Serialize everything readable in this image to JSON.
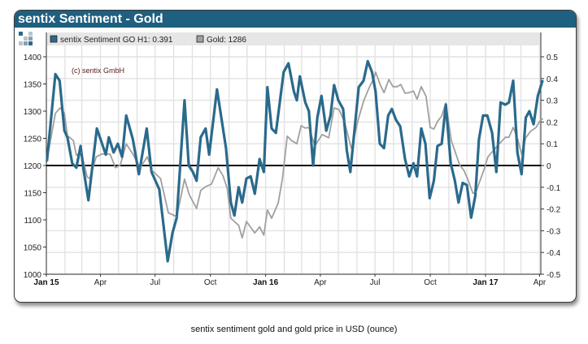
{
  "title": "sentix Sentiment - Gold",
  "caption": "sentix sentiment gold and gold price in USD (ounce)",
  "copyright": "(c) sentix GmbH",
  "logo_icon": "sentix-squares-logo",
  "colors": {
    "title_bar": "#1f5f80",
    "sentiment": "#2a6a8c",
    "gold": "#a0a0a0",
    "zero_line": "#000000"
  },
  "chart_data": {
    "type": "line",
    "legend_placement": "top",
    "grid": true,
    "legend": [
      {
        "label": "sentix Sentiment GO H1: 0.391",
        "color": "#2a6a8c"
      },
      {
        "label": "Gold: 1286",
        "color": "#a0a0a0"
      }
    ],
    "x_ticks": [
      {
        "date": "2015-01-01",
        "label": "Jan 15",
        "bold": true
      },
      {
        "date": "2015-04-01",
        "label": "Apr"
      },
      {
        "date": "2015-07-01",
        "label": "Jul"
      },
      {
        "date": "2015-10-01",
        "label": "Oct"
      },
      {
        "date": "2016-01-01",
        "label": "Jan 16",
        "bold": true
      },
      {
        "date": "2016-04-01",
        "label": "Apr"
      },
      {
        "date": "2016-07-01",
        "label": "Jul"
      },
      {
        "date": "2016-10-01",
        "label": "Oct"
      },
      {
        "date": "2017-01-01",
        "label": "Jan 17",
        "bold": true
      },
      {
        "date": "2017-04-01",
        "label": "Apr"
      }
    ],
    "xlim": [
      "2015-01-01",
      "2017-04-08"
    ],
    "y_left": {
      "lim": [
        1000,
        1400
      ],
      "ticks": [
        "1000",
        "1050",
        "1100",
        "1150",
        "1200",
        "1250",
        "1300",
        "1350",
        "1400"
      ]
    },
    "y_right": {
      "lim": [
        -0.5,
        0.5
      ],
      "ticks": [
        "-0.5",
        "-0.4",
        "-0.3",
        "-0.2",
        "-0.1",
        "0",
        "0.1",
        "0.2",
        "0.3",
        "0.4",
        "0.5"
      ]
    },
    "series": [
      {
        "name": "sentix Sentiment GO H1",
        "axis": "right",
        "points": [
          [
            "2015-01-02",
            0.02
          ],
          [
            "2015-01-16",
            0.42
          ],
          [
            "2015-01-23",
            0.39
          ],
          [
            "2015-01-31",
            0.16
          ],
          [
            "2015-02-05",
            0.13
          ],
          [
            "2015-02-13",
            0.01
          ],
          [
            "2015-02-20",
            -0.01
          ],
          [
            "2015-02-27",
            0.09
          ],
          [
            "2015-03-04",
            -0.02
          ],
          [
            "2015-03-12",
            -0.16
          ],
          [
            "2015-03-26",
            0.17
          ],
          [
            "2015-04-10",
            0.05
          ],
          [
            "2015-04-15",
            0.13
          ],
          [
            "2015-04-23",
            0.06
          ],
          [
            "2015-04-30",
            0.1
          ],
          [
            "2015-05-07",
            0.04
          ],
          [
            "2015-05-14",
            0.23
          ],
          [
            "2015-05-25",
            0.12
          ],
          [
            "2015-06-04",
            -0.04
          ],
          [
            "2015-06-17",
            0.17
          ],
          [
            "2015-06-25",
            -0.03
          ],
          [
            "2015-07-08",
            -0.11
          ],
          [
            "2015-07-22",
            -0.44
          ],
          [
            "2015-07-30",
            -0.31
          ],
          [
            "2015-08-06",
            -0.24
          ],
          [
            "2015-08-19",
            0.3
          ],
          [
            "2015-08-26",
            0.0
          ],
          [
            "2015-09-02",
            -0.03
          ],
          [
            "2015-09-08",
            -0.07
          ],
          [
            "2015-09-15",
            0.13
          ],
          [
            "2015-09-23",
            0.17
          ],
          [
            "2015-09-29",
            0.05
          ],
          [
            "2015-10-12",
            0.35
          ],
          [
            "2015-10-27",
            0.08
          ],
          [
            "2015-11-04",
            -0.17
          ],
          [
            "2015-11-10",
            -0.23
          ],
          [
            "2015-11-17",
            -0.1
          ],
          [
            "2015-11-23",
            -0.17
          ],
          [
            "2015-11-30",
            -0.06
          ],
          [
            "2015-12-07",
            -0.05
          ],
          [
            "2015-12-14",
            -0.13
          ],
          [
            "2015-12-22",
            0.03
          ],
          [
            "2015-12-29",
            -0.03
          ],
          [
            "2016-01-04",
            0.36
          ],
          [
            "2016-01-11",
            0.17
          ],
          [
            "2016-01-18",
            0.15
          ],
          [
            "2016-01-31",
            0.43
          ],
          [
            "2016-02-08",
            0.47
          ],
          [
            "2016-02-17",
            0.34
          ],
          [
            "2016-02-22",
            0.3
          ],
          [
            "2016-02-27",
            0.41
          ],
          [
            "2016-03-07",
            0.29
          ],
          [
            "2016-03-13",
            0.25
          ],
          [
            "2016-03-20",
            0.0
          ],
          [
            "2016-03-27",
            0.22
          ],
          [
            "2016-04-03",
            0.32
          ],
          [
            "2016-04-11",
            0.16
          ],
          [
            "2016-04-18",
            0.23
          ],
          [
            "2016-04-24",
            0.37
          ],
          [
            "2016-05-01",
            0.3
          ],
          [
            "2016-05-09",
            0.26
          ],
          [
            "2016-05-15",
            0.07
          ],
          [
            "2016-05-21",
            -0.03
          ],
          [
            "2016-06-04",
            0.36
          ],
          [
            "2016-06-12",
            0.39
          ],
          [
            "2016-06-19",
            0.48
          ],
          [
            "2016-06-26",
            0.43
          ],
          [
            "2016-07-02",
            0.34
          ],
          [
            "2016-07-09",
            0.1
          ],
          [
            "2016-07-16",
            0.08
          ],
          [
            "2016-07-23",
            0.23
          ],
          [
            "2016-07-29",
            0.26
          ],
          [
            "2016-08-05",
            0.21
          ],
          [
            "2016-08-12",
            0.18
          ],
          [
            "2016-08-20",
            0.03
          ],
          [
            "2016-08-27",
            -0.05
          ],
          [
            "2016-09-03",
            0.01
          ],
          [
            "2016-09-09",
            -0.05
          ],
          [
            "2016-09-16",
            0.17
          ],
          [
            "2016-09-23",
            0.1
          ],
          [
            "2016-09-30",
            -0.15
          ],
          [
            "2016-10-07",
            -0.07
          ],
          [
            "2016-10-13",
            0.09
          ],
          [
            "2016-10-20",
            0.1
          ],
          [
            "2016-10-27",
            0.28
          ],
          [
            "2016-11-04",
            0.01
          ],
          [
            "2016-11-11",
            -0.07
          ],
          [
            "2016-11-17",
            -0.17
          ],
          [
            "2016-11-24",
            -0.08
          ],
          [
            "2016-12-01",
            -0.09
          ],
          [
            "2016-12-08",
            -0.24
          ],
          [
            "2016-12-15",
            -0.14
          ],
          [
            "2016-12-21",
            0.12
          ],
          [
            "2016-12-28",
            0.23
          ],
          [
            "2017-01-04",
            0.23
          ],
          [
            "2017-01-12",
            0.15
          ],
          [
            "2017-01-19",
            -0.03
          ],
          [
            "2017-01-26",
            0.29
          ],
          [
            "2017-02-03",
            0.28
          ],
          [
            "2017-02-09",
            0.29
          ],
          [
            "2017-02-16",
            0.39
          ],
          [
            "2017-02-23",
            0.06
          ],
          [
            "2017-03-02",
            -0.04
          ],
          [
            "2017-03-09",
            0.22
          ],
          [
            "2017-03-15",
            0.25
          ],
          [
            "2017-03-22",
            0.19
          ],
          [
            "2017-03-29",
            0.32
          ],
          [
            "2017-04-06",
            0.391
          ]
        ]
      },
      {
        "name": "Gold",
        "axis": "left",
        "points": [
          [
            "2015-01-02",
            1210
          ],
          [
            "2015-01-16",
            1296
          ],
          [
            "2015-01-24",
            1306
          ],
          [
            "2015-01-31",
            1296
          ],
          [
            "2015-02-05",
            1255
          ],
          [
            "2015-02-15",
            1246
          ],
          [
            "2015-02-20",
            1219
          ],
          [
            "2015-02-28",
            1224
          ],
          [
            "2015-03-10",
            1179
          ],
          [
            "2015-03-14",
            1176
          ],
          [
            "2015-03-25",
            1216
          ],
          [
            "2015-04-03",
            1221
          ],
          [
            "2015-04-17",
            1221
          ],
          [
            "2015-04-26",
            1196
          ],
          [
            "2015-05-04",
            1201
          ],
          [
            "2015-05-14",
            1240
          ],
          [
            "2015-05-25",
            1221
          ],
          [
            "2015-06-06",
            1196
          ],
          [
            "2015-06-18",
            1216
          ],
          [
            "2015-06-26",
            1191
          ],
          [
            "2015-07-10",
            1176
          ],
          [
            "2015-07-23",
            1113
          ],
          [
            "2015-08-06",
            1106
          ],
          [
            "2015-08-19",
            1175
          ],
          [
            "2015-08-27",
            1146
          ],
          [
            "2015-09-08",
            1121
          ],
          [
            "2015-09-15",
            1154
          ],
          [
            "2015-09-23",
            1161
          ],
          [
            "2015-10-03",
            1166
          ],
          [
            "2015-10-14",
            1196
          ],
          [
            "2015-10-22",
            1181
          ],
          [
            "2015-10-29",
            1158
          ],
          [
            "2015-11-04",
            1103
          ],
          [
            "2015-11-17",
            1090
          ],
          [
            "2015-11-23",
            1067
          ],
          [
            "2015-11-30",
            1097
          ],
          [
            "2015-12-14",
            1076
          ],
          [
            "2015-12-22",
            1087
          ],
          [
            "2015-12-29",
            1072
          ],
          [
            "2016-01-04",
            1118
          ],
          [
            "2016-01-11",
            1103
          ],
          [
            "2016-01-22",
            1131
          ],
          [
            "2016-01-29",
            1176
          ],
          [
            "2016-02-06",
            1254
          ],
          [
            "2016-02-13",
            1246
          ],
          [
            "2016-02-22",
            1240
          ],
          [
            "2016-02-29",
            1273
          ],
          [
            "2016-03-07",
            1269
          ],
          [
            "2016-03-13",
            1270
          ],
          [
            "2016-03-23",
            1236
          ],
          [
            "2016-04-04",
            1257
          ],
          [
            "2016-04-15",
            1251
          ],
          [
            "2016-04-24",
            1306
          ],
          [
            "2016-05-02",
            1303
          ],
          [
            "2016-05-11",
            1281
          ],
          [
            "2016-05-23",
            1230
          ],
          [
            "2016-06-03",
            1284
          ],
          [
            "2016-06-12",
            1318
          ],
          [
            "2016-06-20",
            1340
          ],
          [
            "2016-06-30",
            1363
          ],
          [
            "2016-07-02",
            1372
          ],
          [
            "2016-07-10",
            1348
          ],
          [
            "2016-07-16",
            1334
          ],
          [
            "2016-07-24",
            1358
          ],
          [
            "2016-07-31",
            1345
          ],
          [
            "2016-08-07",
            1345
          ],
          [
            "2016-08-13",
            1349
          ],
          [
            "2016-08-20",
            1333
          ],
          [
            "2016-08-27",
            1334
          ],
          [
            "2016-09-03",
            1337
          ],
          [
            "2016-09-09",
            1322
          ],
          [
            "2016-09-16",
            1345
          ],
          [
            "2016-09-24",
            1327
          ],
          [
            "2016-10-01",
            1270
          ],
          [
            "2016-10-07",
            1267
          ],
          [
            "2016-10-13",
            1281
          ],
          [
            "2016-10-20",
            1291
          ],
          [
            "2016-10-27",
            1315
          ],
          [
            "2016-11-05",
            1246
          ],
          [
            "2016-11-19",
            1201
          ],
          [
            "2016-11-26",
            1191
          ],
          [
            "2016-12-02",
            1176
          ],
          [
            "2016-12-11",
            1149
          ],
          [
            "2016-12-16",
            1151
          ],
          [
            "2016-12-29",
            1191
          ],
          [
            "2017-01-05",
            1216
          ],
          [
            "2017-01-12",
            1225
          ],
          [
            "2017-01-23",
            1239
          ],
          [
            "2017-02-03",
            1252
          ],
          [
            "2017-02-09",
            1252
          ],
          [
            "2017-02-16",
            1270
          ],
          [
            "2017-02-23",
            1251
          ],
          [
            "2017-03-02",
            1221
          ],
          [
            "2017-03-09",
            1251
          ],
          [
            "2017-03-17",
            1263
          ],
          [
            "2017-03-26",
            1270
          ],
          [
            "2017-04-01",
            1281
          ],
          [
            "2017-04-06",
            1286
          ]
        ]
      }
    ]
  }
}
